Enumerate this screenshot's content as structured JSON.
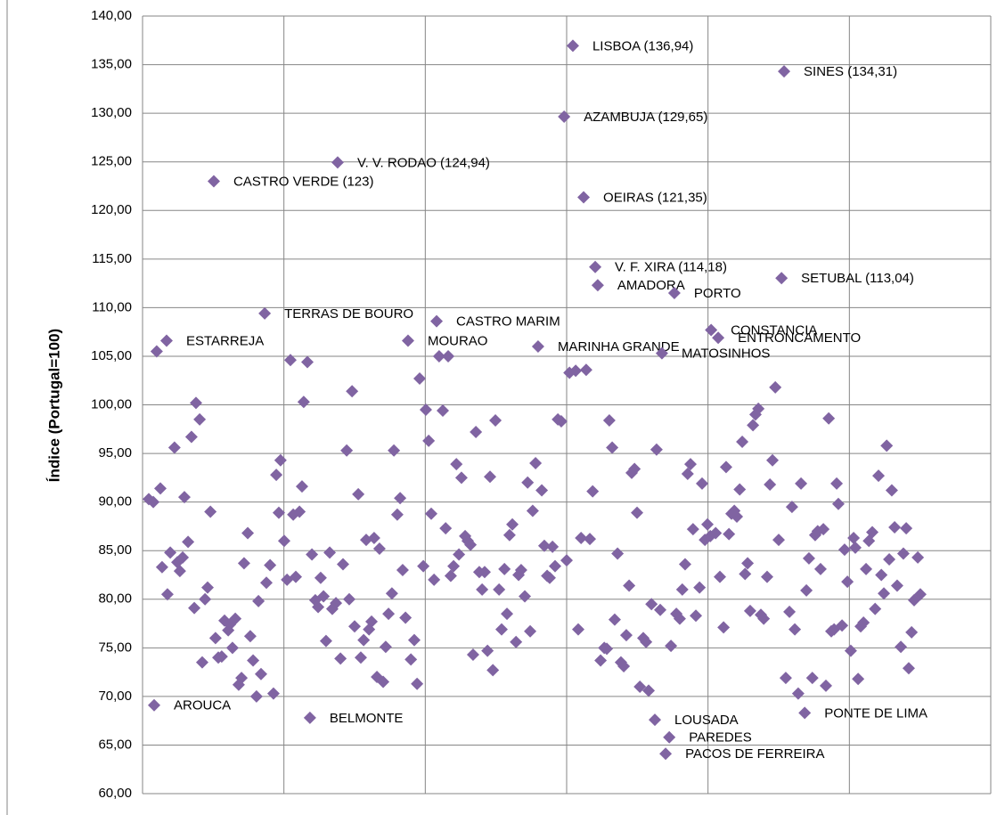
{
  "chart_data": {
    "type": "scatter",
    "y_label": "Índice (Portugal=100)",
    "color": "#8064a2",
    "grid": true,
    "xlim": [
      0,
      300
    ],
    "xticks": [
      0,
      50,
      100,
      150,
      200,
      250,
      300
    ],
    "ylim": [
      60,
      140
    ],
    "yticks": [
      {
        "value": 60,
        "label": "60,00"
      },
      {
        "value": 65,
        "label": "65,00"
      },
      {
        "value": 70,
        "label": "70,00"
      },
      {
        "value": 75,
        "label": "75,00"
      },
      {
        "value": 80,
        "label": "80,00"
      },
      {
        "value": 85,
        "label": "85,00"
      },
      {
        "value": 90,
        "label": "90,00"
      },
      {
        "value": 95,
        "label": "95,00"
      },
      {
        "value": 100,
        "label": "100,00"
      },
      {
        "value": 105,
        "label": "105,00"
      },
      {
        "value": 110,
        "label": "110,00"
      },
      {
        "value": 115,
        "label": "115,00"
      },
      {
        "value": 120,
        "label": "120,00"
      },
      {
        "value": 125,
        "label": "125,00"
      },
      {
        "value": 130,
        "label": "130,00"
      },
      {
        "value": 135,
        "label": "135,00"
      },
      {
        "value": 140,
        "label": "140,00"
      }
    ],
    "x": [
      2.2,
      3.8,
      6.3,
      5.0,
      6.9,
      8.8,
      9.8,
      11.3,
      12.3,
      13.2,
      14.2,
      14.8,
      16.1,
      17.3,
      18.3,
      18.9,
      20.2,
      21.1,
      22.1,
      23.0,
      24.0,
      25.8,
      26.8,
      28.0,
      29.0,
      30.3,
      30.9,
      31.8,
      32.8,
      34.0,
      35.0,
      35.9,
      37.2,
      38.1,
      39.1,
      40.3,
      41.0,
      41.9,
      43.8,
      45.1,
      46.3,
      47.3,
      48.8,
      48.2,
      50.1,
      51.1,
      52.3,
      53.3,
      54.2,
      55.5,
      56.4,
      57.0,
      58.3,
      59.9,
      61.1,
      62.1,
      63.0,
      64.0,
      64.9,
      66.2,
      67.1,
      68.4,
      70.0,
      70.9,
      72.2,
      73.1,
      74.1,
      75.0,
      76.3,
      77.2,
      78.2,
      79.1,
      80.1,
      81.0,
      81.9,
      82.9,
      83.8,
      85.1,
      86.0,
      87.0,
      88.2,
      88.9,
      90.1,
      91.1,
      92.0,
      93.0,
      94.9,
      96.1,
      97.1,
      98.0,
      99.3,
      100.2,
      101.2,
      102.1,
      103.1,
      104.9,
      106.2,
      107.2,
      108.1,
      109.0,
      110.0,
      111.0,
      111.9,
      112.8,
      114.1,
      115.0,
      116.0,
      116.9,
      117.9,
      119.1,
      120.1,
      121.0,
      122.0,
      122.9,
      123.9,
      124.8,
      126.1,
      127.0,
      128.0,
      128.9,
      129.8,
      130.8,
      132.1,
      133.0,
      133.9,
      135.2,
      136.2,
      137.1,
      138.0,
      139.0,
      141.2,
      142.1,
      143.1,
      144.0,
      145.0,
      145.9,
      146.9,
      148.1,
      150.0,
      151.0,
      153.2,
      154.1,
      155.1,
      156.9,
      158.2,
      159.2,
      162.0,
      163.3,
      164.2,
      165.1,
      166.1,
      167.0,
      168.0,
      169.2,
      170.2,
      171.1,
      172.1,
      173.0,
      174.0,
      174.9,
      175.9,
      177.1,
      178.1,
      179.0,
      180.0,
      181.8,
      183.1,
      186.9,
      188.8,
      190.0,
      190.9,
      191.9,
      192.8,
      193.8,
      194.7,
      195.7,
      197.0,
      197.9,
      198.9,
      199.8,
      200.8,
      202.7,
      204.2,
      205.5,
      206.4,
      207.4,
      208.3,
      209.3,
      210.2,
      211.2,
      212.1,
      213.1,
      214.0,
      214.9,
      215.9,
      216.8,
      217.8,
      218.7,
      219.7,
      220.9,
      221.9,
      222.8,
      223.8,
      225.0,
      227.5,
      228.8,
      229.7,
      230.7,
      231.9,
      232.9,
      234.8,
      235.7,
      236.9,
      237.9,
      238.8,
      239.8,
      240.8,
      241.7,
      242.7,
      243.6,
      244.6,
      245.5,
      246.1,
      247.4,
      248.3,
      249.3,
      250.5,
      251.5,
      252.1,
      253.1,
      254.0,
      255.0,
      255.9,
      256.9,
      258.1,
      259.1,
      260.3,
      261.3,
      262.2,
      263.2,
      264.1,
      265.0,
      266.0,
      266.9,
      268.2,
      269.1,
      270.1,
      271.0,
      272.0,
      272.9,
      274.2,
      275.1
    ],
    "values": [
      90.3,
      90.0,
      91.4,
      105.5,
      83.3,
      80.5,
      84.8,
      95.6,
      83.8,
      82.9,
      84.3,
      90.5,
      85.9,
      96.7,
      79.1,
      100.2,
      98.5,
      73.5,
      80.0,
      81.2,
      89.0,
      76.0,
      74.0,
      74.1,
      77.8,
      76.8,
      77.4,
      75.0,
      78.0,
      71.2,
      71.9,
      83.7,
      86.8,
      76.2,
      73.7,
      70.0,
      79.8,
      72.3,
      81.7,
      83.5,
      70.3,
      92.8,
      94.3,
      88.9,
      86.0,
      82.0,
      104.6,
      88.7,
      82.3,
      89.0,
      91.6,
      100.3,
      104.4,
      84.6,
      79.9,
      79.2,
      82.2,
      80.3,
      75.7,
      84.8,
      79.0,
      79.6,
      73.9,
      83.6,
      95.3,
      80.0,
      101.4,
      77.2,
      90.8,
      74.0,
      75.8,
      86.1,
      76.9,
      77.7,
      86.3,
      72.0,
      85.2,
      71.5,
      75.1,
      78.5,
      80.6,
      95.3,
      88.7,
      90.4,
      83.0,
      78.1,
      73.8,
      75.8,
      71.3,
      102.7,
      83.4,
      99.5,
      96.3,
      88.8,
      82.0,
      105.0,
      99.4,
      87.3,
      105.0,
      82.4,
      83.4,
      93.9,
      84.6,
      92.5,
      86.5,
      86.0,
      85.6,
      74.3,
      97.2,
      82.8,
      81.0,
      82.8,
      74.7,
      92.6,
      72.7,
      98.4,
      81.0,
      76.9,
      83.1,
      78.5,
      86.6,
      87.7,
      75.6,
      82.5,
      83.0,
      80.3,
      92.0,
      76.7,
      89.1,
      94.0,
      91.2,
      85.5,
      82.4,
      82.2,
      85.4,
      83.4,
      98.5,
      98.3,
      84.0,
      103.3,
      103.5,
      76.9,
      86.3,
      103.6,
      86.2,
      91.1,
      73.7,
      75.0,
      74.9,
      98.4,
      95.6,
      77.9,
      84.7,
      73.5,
      73.1,
      76.3,
      81.4,
      93.0,
      93.4,
      88.9,
      71.0,
      76.0,
      75.6,
      70.6,
      79.5,
      95.4,
      78.9,
      75.2,
      78.5,
      78.0,
      81.0,
      83.6,
      92.9,
      93.9,
      87.2,
      78.3,
      81.2,
      91.9,
      86.1,
      87.7,
      86.5,
      86.8,
      82.3,
      77.1,
      93.6,
      86.7,
      88.8,
      89.1,
      88.5,
      91.3,
      96.2,
      82.6,
      83.7,
      78.8,
      97.9,
      99.0,
      99.6,
      78.4,
      78.0,
      82.3,
      91.8,
      94.3,
      101.8,
      86.1,
      71.9,
      78.7,
      89.5,
      76.9,
      70.3,
      91.9,
      80.9,
      84.2,
      71.9,
      86.6,
      87.0,
      83.1,
      87.2,
      71.1,
      98.6,
      76.7,
      76.9,
      91.9,
      89.8,
      77.3,
      85.1,
      81.8,
      74.7,
      86.3,
      85.3,
      71.8,
      77.2,
      77.6,
      83.1,
      86.0,
      86.9,
      79.0,
      92.7,
      82.5,
      80.6,
      95.8,
      84.1,
      91.2,
      87.4,
      81.4,
      75.1,
      84.7,
      87.3,
      72.9,
      76.6,
      79.9,
      84.3,
      80.5
    ],
    "labeled_points": [
      {
        "label": "LISBOA (136,94)",
        "x": 152.2,
        "y": 136.94
      },
      {
        "label": "SINES (134,31)",
        "x": 226.9,
        "y": 134.31
      },
      {
        "label": "AZAMBUJA (129,65)",
        "x": 149.1,
        "y": 129.65
      },
      {
        "label": "V. V. RODAO (124,94)",
        "x": 69.0,
        "y": 124.94
      },
      {
        "label": "CASTRO VERDE (123)",
        "x": 25.2,
        "y": 123
      },
      {
        "label": "OEIRAS (121,35)",
        "x": 156.0,
        "y": 121.35
      },
      {
        "label": "V. F. XIRA (114,18)",
        "x": 160.1,
        "y": 114.18
      },
      {
        "label": "SETUBAL (113,04)",
        "x": 226.0,
        "y": 113.04
      },
      {
        "label": "AMADORA",
        "x": 161.0,
        "y": 112.3
      },
      {
        "label": "PORTO",
        "x": 188.1,
        "y": 111.5
      },
      {
        "label": "TERRAS DE BOURO",
        "x": 43.2,
        "y": 109.4
      },
      {
        "label": "ESTARREJA",
        "x": 8.5,
        "y": 106.6
      },
      {
        "label": "CASTRO MARIM",
        "x": 104.0,
        "y": 108.6
      },
      {
        "label": "MOURAO",
        "x": 93.9,
        "y": 106.6
      },
      {
        "label": "MARINHA GRANDE",
        "x": 139.9,
        "y": 106.0
      },
      {
        "label": "CONSTANCIA",
        "x": 201.1,
        "y": 107.7
      },
      {
        "label": "ENTRONCAMENTO",
        "x": 203.6,
        "y": 106.9
      },
      {
        "label": "MATOSINHOS",
        "x": 183.7,
        "y": 105.3
      },
      {
        "label": "AROUCA",
        "x": 4.1,
        "y": 69.1
      },
      {
        "label": "BELMONTE",
        "x": 59.2,
        "y": 67.8
      },
      {
        "label": "LOUSADA",
        "x": 181.2,
        "y": 67.6
      },
      {
        "label": "PAREDES",
        "x": 186.3,
        "y": 65.8
      },
      {
        "label": "PACOS DE FERREIRA",
        "x": 185.0,
        "y": 64.1
      },
      {
        "label": "PONTE DE LIMA",
        "x": 234.2,
        "y": 68.3
      }
    ]
  }
}
